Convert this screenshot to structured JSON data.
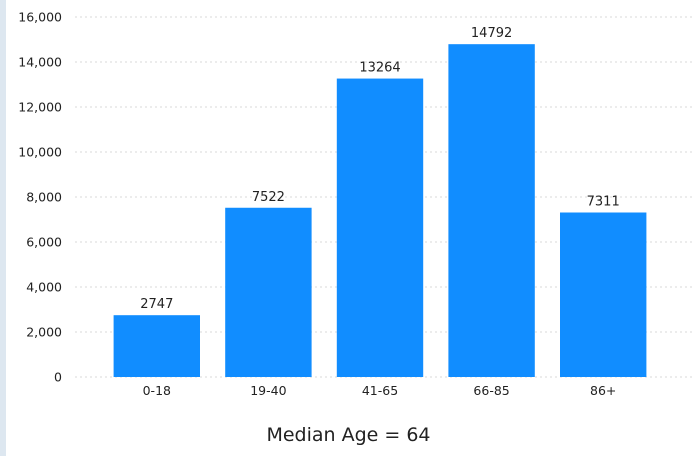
{
  "chart_data": {
    "type": "bar",
    "categories": [
      "0-18",
      "19-40",
      "41-65",
      "66-85",
      "86+"
    ],
    "values": [
      2747,
      7522,
      13264,
      14792,
      7311
    ],
    "data_labels": [
      "2747",
      "7522",
      "13264",
      "14792",
      "7311"
    ],
    "y_ticks": [
      0,
      2000,
      4000,
      6000,
      8000,
      10000,
      12000,
      14000,
      16000
    ],
    "y_tick_labels": [
      "0",
      "2,000",
      "4,000",
      "6,000",
      "8,000",
      "10,000",
      "12,000",
      "14,000",
      "16,000"
    ],
    "ylim": [
      0,
      16000
    ],
    "grid": true,
    "bar_color": "#118dff",
    "grid_color": "#d9d9d9",
    "legend": "none"
  },
  "footer": {
    "note": "Median Age = 64"
  }
}
